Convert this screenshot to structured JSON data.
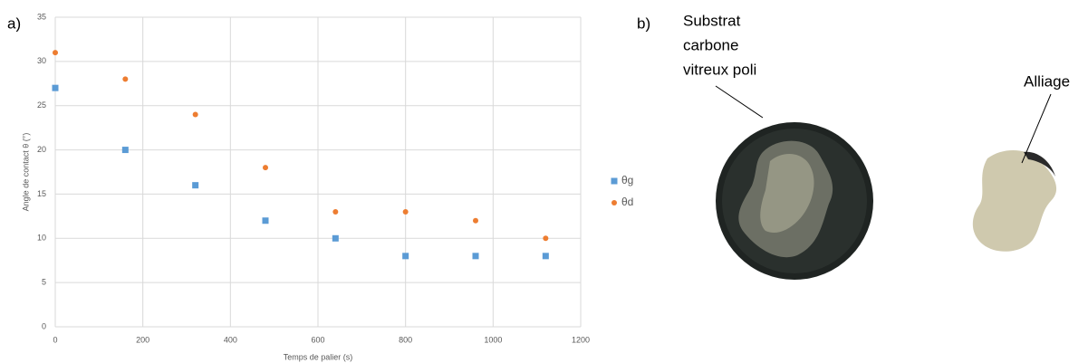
{
  "panel_labels": [
    "a)",
    "b)"
  ],
  "photo": {
    "substrate_label": [
      "Substrat",
      "carbone",
      "vitreux poli"
    ],
    "alloy_label": "Alliage"
  },
  "chart_data": {
    "type": "scatter",
    "x_label": "Temps de palier (s)",
    "y_label": "Angle de contact θ (°)",
    "x": [
      0,
      160,
      320,
      480,
      640,
      800,
      960,
      1120
    ],
    "series": [
      {
        "name": "θg",
        "color": "#5b9bd5",
        "marker": "square",
        "values": [
          27,
          20,
          16,
          12,
          10,
          8,
          8,
          8
        ]
      },
      {
        "name": "θd",
        "color": "#ed7d31",
        "marker": "circle",
        "values": [
          31,
          28,
          24,
          18,
          13,
          13,
          12,
          10
        ]
      }
    ],
    "xlim": [
      0,
      1200
    ],
    "xticks": [
      0,
      200,
      400,
      600,
      800,
      1000,
      1200
    ],
    "ylim": [
      0,
      35
    ],
    "yticks": [
      0,
      5,
      10,
      15,
      20,
      25,
      30,
      35
    ],
    "grid": true,
    "legend": "right"
  }
}
